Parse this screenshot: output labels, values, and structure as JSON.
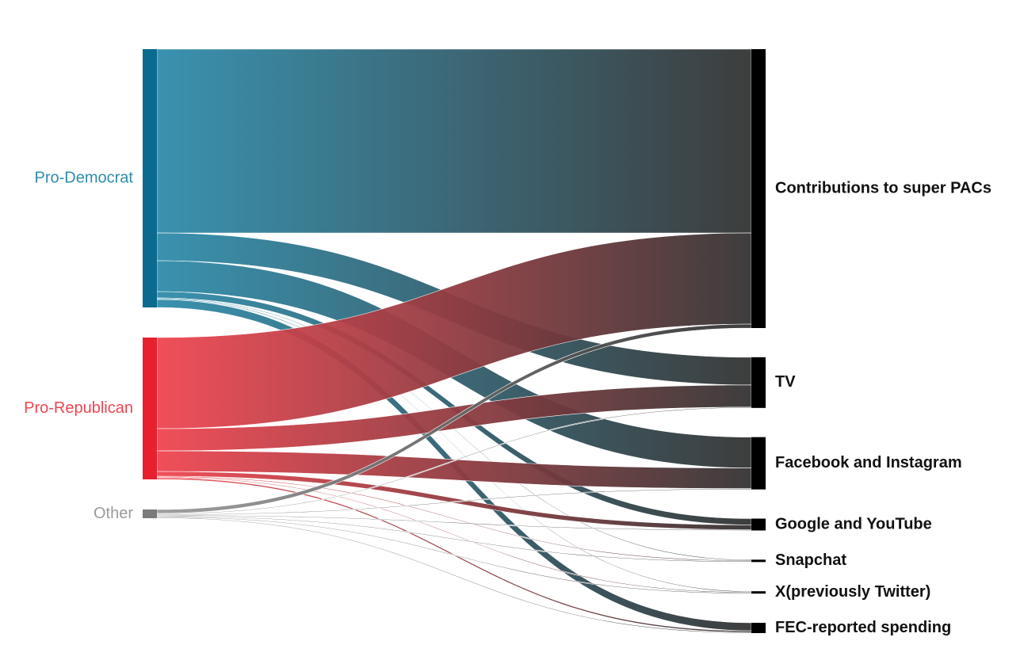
{
  "chart_data": {
    "type": "sankey",
    "sources": [
      {
        "name": "Pro-Democrat",
        "color": "#2f8cab",
        "node_color": "#0b6b8e"
      },
      {
        "name": "Pro-Republican",
        "color": "#f04550",
        "node_color": "#e8202e"
      },
      {
        "name": "Other",
        "color": "#9a9a9a",
        "node_color": "#7a7a7a"
      }
    ],
    "targets": [
      {
        "name": "Contributions to super PACs",
        "color": "#333333",
        "node_color": "#000000"
      },
      {
        "name": "TV",
        "color": "#333333",
        "node_color": "#000000"
      },
      {
        "name": "Facebook and Instagram",
        "color": "#333333",
        "node_color": "#000000"
      },
      {
        "name": "Google and YouTube",
        "color": "#333333",
        "node_color": "#000000"
      },
      {
        "name": "Snapchat",
        "color": "#333333",
        "node_color": "#000000"
      },
      {
        "name": "X(previously Twitter)",
        "color": "#333333",
        "node_color": "#000000"
      },
      {
        "name": "FEC-reported spending",
        "color": "#333333",
        "node_color": "#000000"
      }
    ],
    "links": [
      {
        "source": 0,
        "target": 0,
        "value": 232
      },
      {
        "source": 0,
        "target": 1,
        "value": 35
      },
      {
        "source": 0,
        "target": 2,
        "value": 39
      },
      {
        "source": 0,
        "target": 3,
        "value": 8
      },
      {
        "source": 0,
        "target": 4,
        "value": 1
      },
      {
        "source": 0,
        "target": 5,
        "value": 1
      },
      {
        "source": 0,
        "target": 6,
        "value": 10
      },
      {
        "source": 1,
        "target": 0,
        "value": 115
      },
      {
        "source": 1,
        "target": 1,
        "value": 28
      },
      {
        "source": 1,
        "target": 2,
        "value": 26
      },
      {
        "source": 1,
        "target": 3,
        "value": 6
      },
      {
        "source": 1,
        "target": 4,
        "value": 1
      },
      {
        "source": 1,
        "target": 5,
        "value": 1
      },
      {
        "source": 1,
        "target": 6,
        "value": 2
      },
      {
        "source": 2,
        "target": 0,
        "value": 5
      },
      {
        "source": 2,
        "target": 1,
        "value": 1
      },
      {
        "source": 2,
        "target": 2,
        "value": 1
      },
      {
        "source": 2,
        "target": 3,
        "value": 1
      },
      {
        "source": 2,
        "target": 4,
        "value": 1
      },
      {
        "source": 2,
        "target": 5,
        "value": 1
      },
      {
        "source": 2,
        "target": 6,
        "value": 1
      }
    ]
  }
}
